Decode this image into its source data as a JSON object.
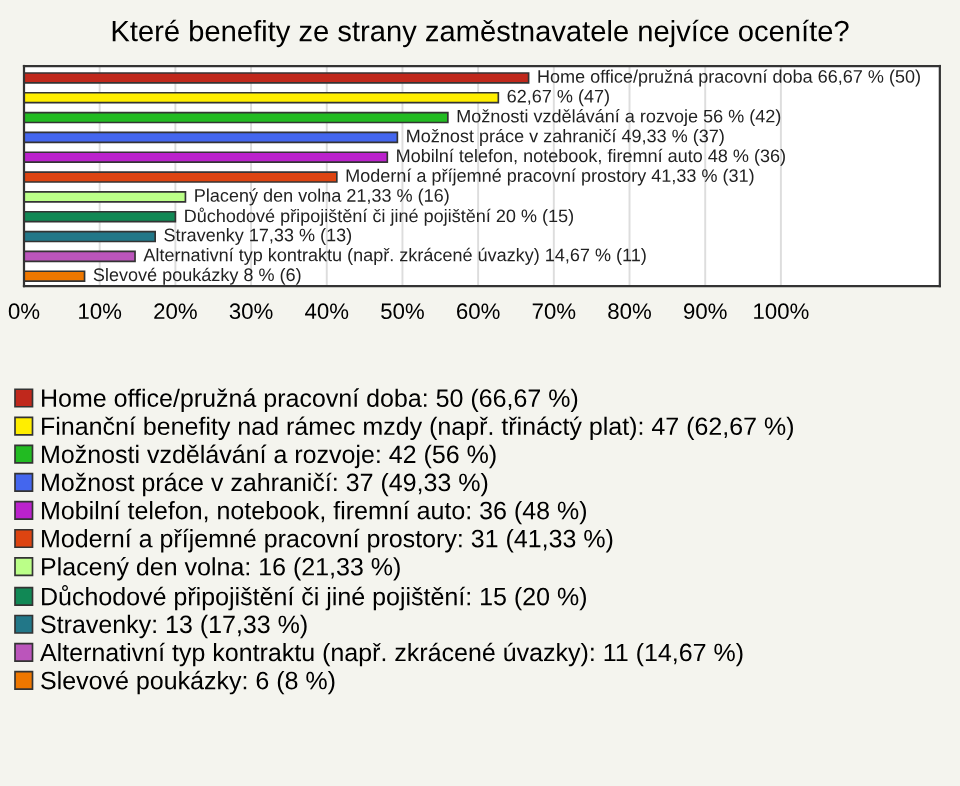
{
  "chart_data": {
    "type": "bar",
    "orientation": "horizontal",
    "title": "Které benefity ze strany zaměstnavatele nejvíce oceníte?",
    "categories": [
      null,
      null,
      null,
      null,
      null,
      null,
      null,
      null,
      null,
      null,
      null
    ],
    "series": [
      {
        "name": "Home office/pružná pracovní doba: 50 (66,67 %)",
        "color": "#c0281c",
        "values": [
          66.67,
          null,
          null,
          null,
          null,
          null,
          null,
          null,
          null,
          null,
          null
        ],
        "value_labels": [
          "Home office/pružná pracovní doba 66,67 % (50)",
          null,
          null,
          null,
          null,
          null,
          null,
          null,
          null,
          null,
          null
        ]
      },
      {
        "name": "Finanční benefity nad rámec mzdy (např. třináctý plat): 47 (62,67 %)",
        "color": "#ffee00",
        "values": [
          null,
          62.67,
          null,
          null,
          null,
          null,
          null,
          null,
          null,
          null,
          null
        ],
        "value_labels": [
          null,
          "62,67 % (47)",
          null,
          null,
          null,
          null,
          null,
          null,
          null,
          null,
          null
        ]
      },
      {
        "name": "Možnosti vzdělávání a rozvoje: 42 (56 %)",
        "color": "#22bb22",
        "values": [
          null,
          null,
          56,
          null,
          null,
          null,
          null,
          null,
          null,
          null,
          null
        ],
        "value_labels": [
          null,
          null,
          "Možnosti vzdělávání a rozvoje 56 % (42)",
          null,
          null,
          null,
          null,
          null,
          null,
          null,
          null
        ]
      },
      {
        "name": "Možnost práce v zahraničí: 37 (49,33 %)",
        "color": "#4466ee",
        "values": [
          null,
          null,
          null,
          49.33,
          null,
          null,
          null,
          null,
          null,
          null,
          null
        ],
        "value_labels": [
          null,
          null,
          null,
          "Možnost práce v zahraničí 49,33 % (37)",
          null,
          null,
          null,
          null,
          null,
          null,
          null
        ]
      },
      {
        "name": "Mobilní telefon, notebook, firemní auto: 36 (48 %)",
        "color": "#bb22cc",
        "values": [
          null,
          null,
          null,
          null,
          48,
          null,
          null,
          null,
          null,
          null,
          null
        ],
        "value_labels": [
          null,
          null,
          null,
          null,
          "Mobilní telefon, notebook, firemní auto 48 % (36)",
          null,
          null,
          null,
          null,
          null,
          null
        ]
      },
      {
        "name": "Moderní a příjemné pracovní prostory: 31 (41,33 %)",
        "color": "#dd4411",
        "values": [
          null,
          null,
          null,
          null,
          null,
          41.33,
          null,
          null,
          null,
          null,
          null
        ],
        "value_labels": [
          null,
          null,
          null,
          null,
          null,
          "Moderní a příjemné pracovní prostory 41,33 % (31)",
          null,
          null,
          null,
          null,
          null
        ]
      },
      {
        "name": "Placený den volna: 16 (21,33 %)",
        "color": "#bbff88",
        "values": [
          null,
          null,
          null,
          null,
          null,
          null,
          21.33,
          null,
          null,
          null,
          null
        ],
        "value_labels": [
          null,
          null,
          null,
          null,
          null,
          null,
          "Placený den volna 21,33 % (16)",
          null,
          null,
          null,
          null
        ]
      },
      {
        "name": "Důchodové připojištění či jiné pojištění: 15 (20 %)",
        "color": "#118855",
        "values": [
          null,
          null,
          null,
          null,
          null,
          null,
          null,
          20,
          null,
          null,
          null
        ],
        "value_labels": [
          null,
          null,
          null,
          null,
          null,
          null,
          null,
          "Důchodové připojištění či jiné pojištění 20 % (15)",
          null,
          null,
          null
        ]
      },
      {
        "name": "Stravenky: 13 (17,33 %)",
        "color": "#227788",
        "values": [
          null,
          null,
          null,
          null,
          null,
          null,
          null,
          null,
          17.33,
          null,
          null
        ],
        "value_labels": [
          null,
          null,
          null,
          null,
          null,
          null,
          null,
          null,
          "Stravenky 17,33 % (13)",
          null,
          null
        ]
      },
      {
        "name": "Alternativní typ kontraktu (např. zkrácené úvazky): 11 (14,67 %)",
        "color": "#bb55bb",
        "values": [
          null,
          null,
          null,
          null,
          null,
          null,
          null,
          null,
          null,
          14.67,
          null
        ],
        "value_labels": [
          null,
          null,
          null,
          null,
          null,
          null,
          null,
          null,
          null,
          "Alternativní typ kontraktu (např. zkrácené úvazky) 14,67 % (11)",
          null
        ]
      },
      {
        "name": "Slevové poukázky: 6 (8 %)",
        "color": "#ee7700",
        "values": [
          null,
          null,
          null,
          null,
          null,
          null,
          null,
          null,
          null,
          null,
          8
        ],
        "value_labels": [
          null,
          null,
          null,
          null,
          null,
          null,
          null,
          null,
          null,
          null,
          "Slevové poukázky 8 % (6)"
        ]
      }
    ],
    "xlim": [
      0,
      121
    ],
    "xticks": [
      {
        "value": 0,
        "label": "0%"
      },
      {
        "value": 10,
        "label": "10%"
      },
      {
        "value": 20,
        "label": "20%"
      },
      {
        "value": 30,
        "label": "30%"
      },
      {
        "value": 40,
        "label": "40%"
      },
      {
        "value": 50,
        "label": "50%"
      },
      {
        "value": 60,
        "label": "60%"
      },
      {
        "value": 70,
        "label": "70%"
      },
      {
        "value": 80,
        "label": "80%"
      },
      {
        "value": 90,
        "label": "90%"
      },
      {
        "value": 100,
        "label": "100%"
      }
    ],
    "grid": "x",
    "legend": "bottom"
  }
}
